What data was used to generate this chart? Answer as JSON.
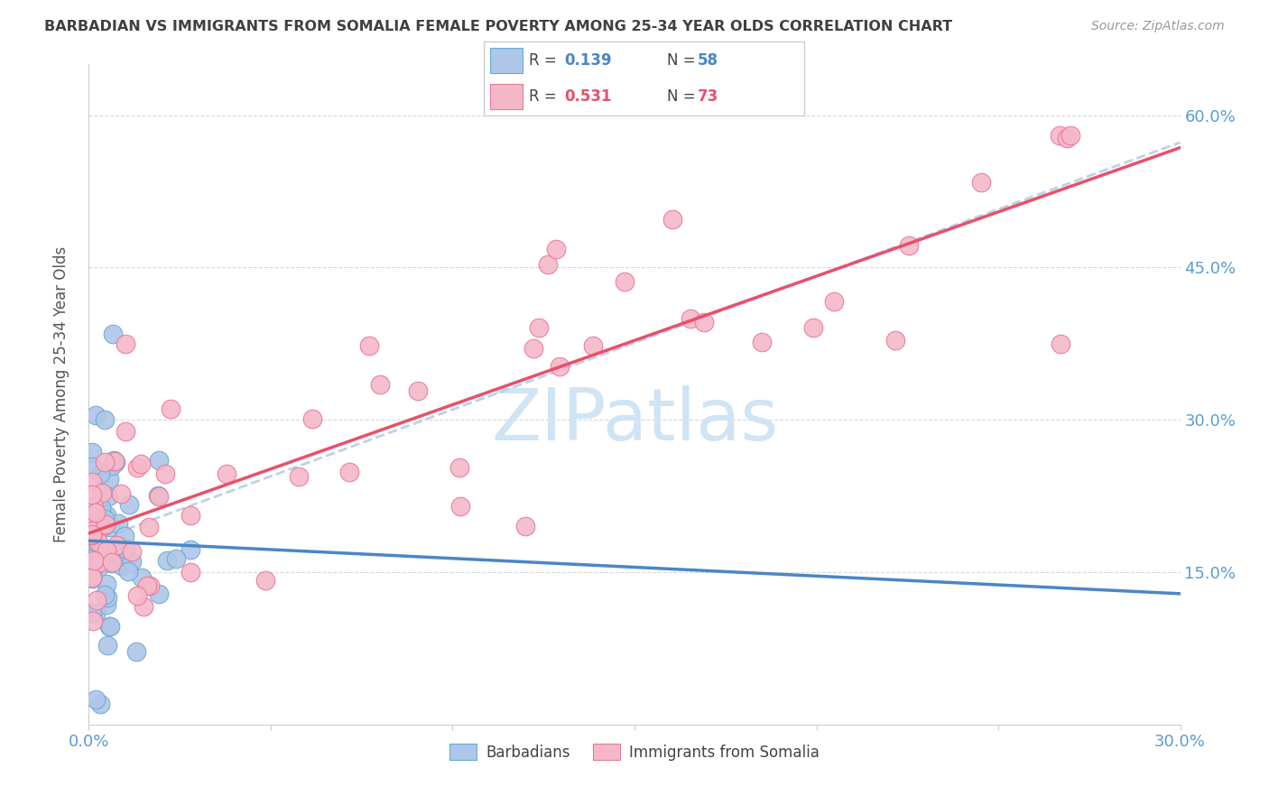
{
  "title": "BARBADIAN VS IMMIGRANTS FROM SOMALIA FEMALE POVERTY AMONG 25-34 YEAR OLDS CORRELATION CHART",
  "source": "Source: ZipAtlas.com",
  "ylabel": "Female Poverty Among 25-34 Year Olds",
  "ytick_labels": [
    "60.0%",
    "45.0%",
    "30.0%",
    "15.0%"
  ],
  "ytick_values": [
    0.6,
    0.45,
    0.3,
    0.15
  ],
  "color_barbadian_fill": "#aec6e8",
  "color_barbadian_edge": "#6aaad4",
  "color_barbadian_line": "#4a86c8",
  "color_somalia_fill": "#f5b8c8",
  "color_somalia_edge": "#e87898",
  "color_somalia_line": "#e8506a",
  "color_axis_labels": "#5b9bd5",
  "color_title": "#404040",
  "color_source": "#999999",
  "color_grid": "#d8d8d8",
  "color_dashed": "#b8cce4",
  "watermark_color": "#d0e4f4",
  "xmin": 0.0,
  "xmax": 0.3,
  "ymin": 0.0,
  "ymax": 0.65
}
